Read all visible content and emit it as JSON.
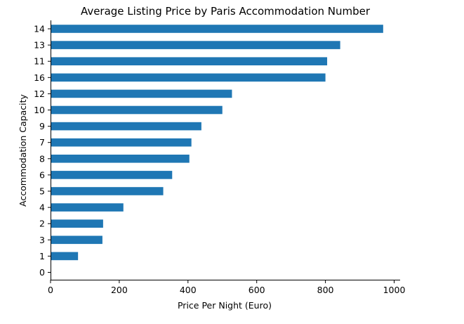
{
  "chart_data": {
    "type": "bar",
    "orientation": "horizontal",
    "title": "Average Listing Price by Paris Accommodation Number",
    "xlabel": "Price Per Night (Euro)",
    "ylabel": "Accommodation Capacity",
    "categories": [
      "14",
      "13",
      "11",
      "16",
      "12",
      "10",
      "9",
      "7",
      "8",
      "6",
      "5",
      "4",
      "2",
      "3",
      "1",
      "0"
    ],
    "values": [
      968,
      843,
      805,
      800,
      528,
      500,
      439,
      410,
      404,
      354,
      328,
      212,
      153,
      151,
      80,
      0
    ],
    "xlim": [
      0,
      1000
    ],
    "xticks": [
      "0",
      "200",
      "400",
      "600",
      "800",
      "1000"
    ],
    "bar_color": "#1f77b4",
    "grid": false,
    "legend": "none"
  }
}
